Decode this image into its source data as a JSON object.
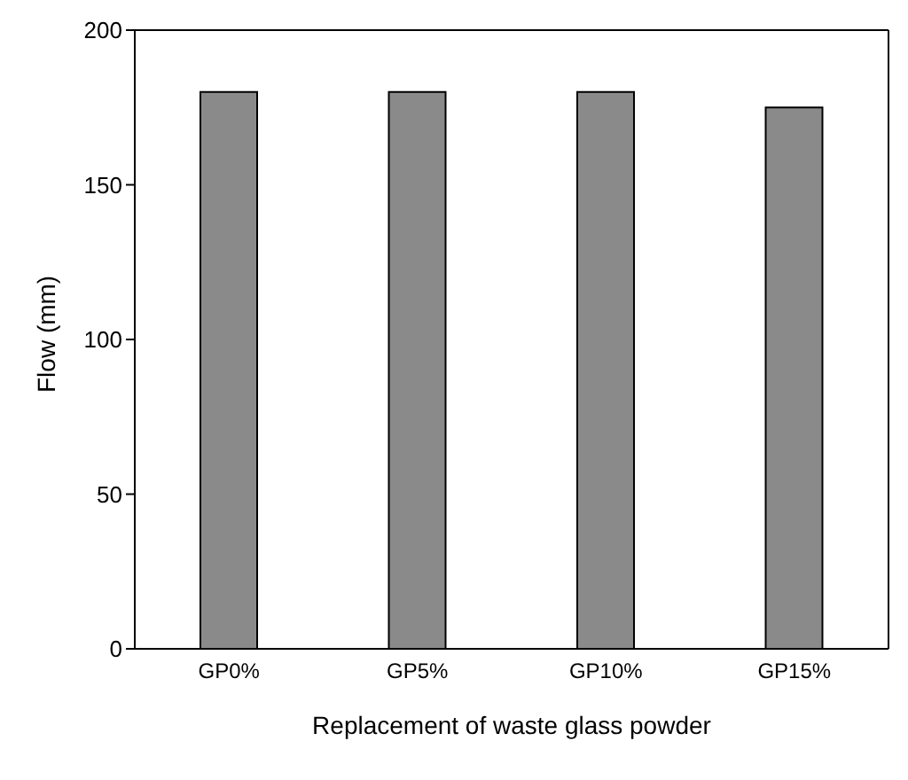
{
  "chart_data": {
    "type": "bar",
    "xlabel": "Replacement of waste glass powder",
    "ylabel": "Flow (mm)",
    "categories": [
      "GP0%",
      "GP5%",
      "GP10%",
      "GP15%"
    ],
    "values": [
      180,
      180,
      180,
      175
    ],
    "color": "#8a8a8a",
    "ylim": [
      0,
      200
    ],
    "yticks": [
      0,
      50,
      100,
      150,
      200
    ],
    "grid": false,
    "legend": false
  }
}
